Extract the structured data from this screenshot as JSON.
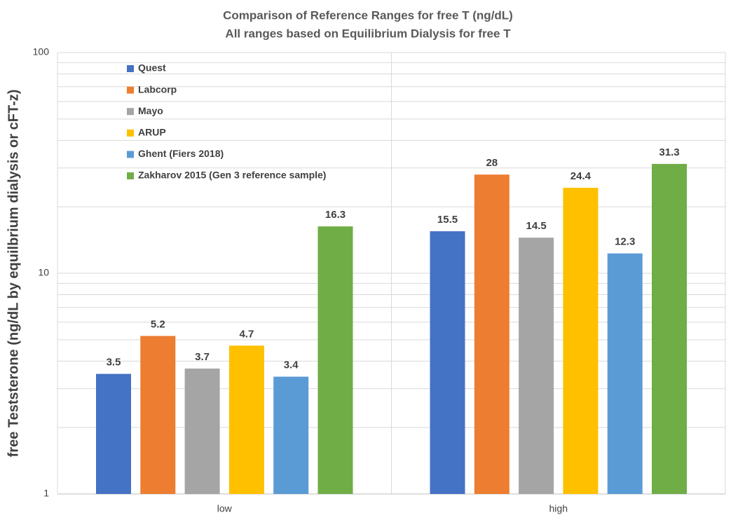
{
  "chart_data": {
    "type": "bar",
    "title": "Comparison of Reference Ranges for free T (ng/dL)",
    "subtitle": "All ranges based on Equilibrium Dialysis for free T",
    "y_label": "free Teststerone (ng/dL by equilbrium dialysis or  cFT-z)",
    "categories": [
      "low",
      "high"
    ],
    "series": [
      {
        "name": "Quest",
        "color": "#4472c4",
        "values": [
          3.5,
          15.5
        ]
      },
      {
        "name": "Labcorp",
        "color": "#ed7d31",
        "values": [
          5.2,
          28
        ]
      },
      {
        "name": "Mayo",
        "color": "#a5a5a5",
        "values": [
          3.7,
          14.5
        ]
      },
      {
        "name": "ARUP",
        "color": "#ffc000",
        "values": [
          4.7,
          24.4
        ]
      },
      {
        "name": "Ghent (Fiers 2018)",
        "color": "#5b9bd5",
        "values": [
          3.4,
          12.3
        ]
      },
      {
        "name": "Zakharov 2015  (Gen 3 reference sample)",
        "color": "#70ad47",
        "values": [
          16.3,
          31.3
        ]
      }
    ],
    "ylim": [
      1,
      100
    ],
    "yticks": [
      1,
      10,
      100
    ],
    "log_y": true,
    "grid": true,
    "minor_grid": true,
    "legend": "upper-left"
  }
}
